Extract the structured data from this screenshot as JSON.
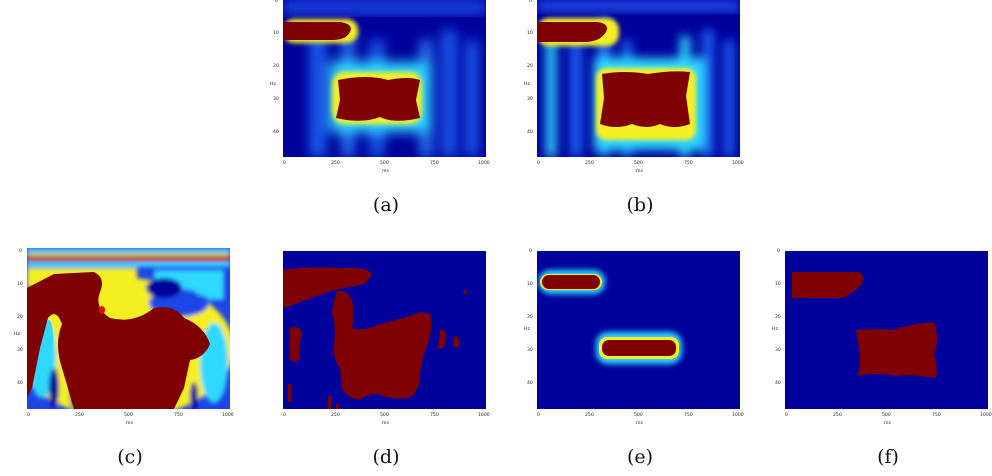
{
  "figure": {
    "panels": [
      {
        "id": "a",
        "caption": "(a)",
        "type": "spectrogram-smooth"
      },
      {
        "id": "b",
        "caption": "(b)",
        "type": "spectrogram-sharp"
      },
      {
        "id": "c",
        "caption": "(c)",
        "type": "spectrogram-noisy"
      },
      {
        "id": "d",
        "caption": "(d)",
        "type": "mask-irregular"
      },
      {
        "id": "e",
        "caption": "(e)",
        "type": "mask-blobs"
      },
      {
        "id": "f",
        "caption": "(f)",
        "type": "mask-blocks"
      }
    ],
    "axes": {
      "xlabel": "ms",
      "ylabel": "Hz",
      "xticks": [
        "0",
        "250",
        "500",
        "750",
        "1000"
      ],
      "yticks": [
        "0",
        "10",
        "20",
        "30",
        "40"
      ]
    },
    "colors": {
      "background": "#00009a",
      "peak": "#7f0000",
      "mid_blue": "#1e46e6",
      "cyan": "#2fd8ff",
      "yellow": "#f4ef24",
      "orange": "#ff6a00",
      "red": "#e01010"
    }
  }
}
